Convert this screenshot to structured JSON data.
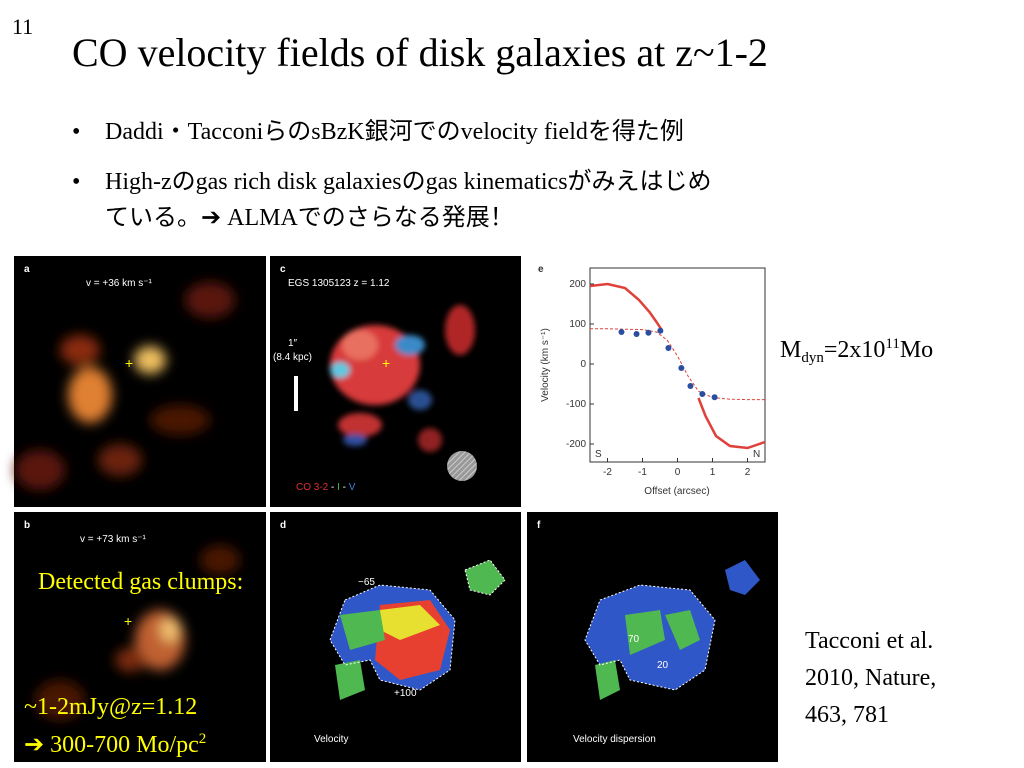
{
  "slide_number": "11",
  "title": "CO velocity fields of disk galaxies at z~1-2",
  "bullets": [
    "Daddi・TacconiらのsBzK銀河でのvelocity fieldを得た例",
    [
      "High-zのgas rich disk galaxiesのgas kinematicsがみえはじめ",
      "ている。➔ ALMAでのさらなる発展！"
    ]
  ],
  "dynamical_mass": {
    "base": "M",
    "sub": "dyn",
    "mid": "=2x10",
    "sup": "11",
    "unit": "Mo"
  },
  "panels": {
    "a": {
      "label": "a",
      "caption": "v = +36 km s⁻¹"
    },
    "b": {
      "label": "b",
      "caption": "v = +73 km s⁻¹"
    },
    "c": {
      "label": "c",
      "caption": "EGS 1305123  z = 1.12",
      "scale": [
        "1″",
        "(8.4 kpc)"
      ],
      "legend": [
        "CO 3-2",
        " - ",
        "I",
        " - ",
        "V"
      ]
    },
    "d": {
      "label": "d",
      "contours": [
        "−65",
        "+100"
      ],
      "caption": "Velocity"
    },
    "f": {
      "label": "f",
      "contours": [
        "70",
        "20"
      ],
      "caption": "Velocity dispersion"
    }
  },
  "chart_data": {
    "type": "scatter",
    "label": "e",
    "ylabel": "Velocity (km s⁻¹)",
    "xlabel": "Offset (arcsec)",
    "side_labels": [
      "S",
      "N"
    ],
    "xlim": [
      -2.5,
      2.5
    ],
    "ylim": [
      -245,
      240
    ],
    "xticks": [
      -2,
      -1,
      0,
      1,
      2
    ],
    "yticks": [
      -200,
      -100,
      0,
      100,
      200
    ],
    "x": [
      -1.6,
      -1.17,
      -0.83,
      -0.49,
      -0.26,
      0.11,
      0.37,
      0.71,
      1.06
    ],
    "values": [
      80,
      75,
      78,
      83,
      40,
      -10,
      -55,
      -75,
      -83
    ],
    "color": "#2b4fa0",
    "models": [
      {
        "style": "dashed",
        "color": "#e0403a",
        "x": [
          -2.5,
          -2,
          -1.5,
          -1,
          -0.6,
          -0.3,
          0,
          0.3,
          0.6,
          1,
          1.5,
          2,
          2.5
        ],
        "values": [
          88,
          88,
          87,
          86,
          80,
          60,
          20,
          -30,
          -68,
          -84,
          -88,
          -89,
          -89
        ]
      },
      {
        "style": "solid",
        "color": "#e0403a",
        "x": [
          -2.5,
          -2,
          -1.5,
          -1.1,
          -0.8,
          -0.6,
          -0.45,
          0.45,
          0.6,
          0.8,
          1.1,
          1.5,
          2,
          2.5
        ],
        "values": [
          195,
          200,
          190,
          160,
          130,
          105,
          85,
          null,
          -85,
          -130,
          -180,
          -205,
          -210,
          -195
        ]
      }
    ]
  },
  "annotations": {
    "clumps": "Detected gas clumps:",
    "flux": "~1-2mJy@z=1.12",
    "surface_density": "➔ 300-700 Mo/pc",
    "surface_density_sup": "2"
  },
  "citation": [
    "Tacconi et al.",
    "2010, Nature,",
    "463, 781"
  ]
}
